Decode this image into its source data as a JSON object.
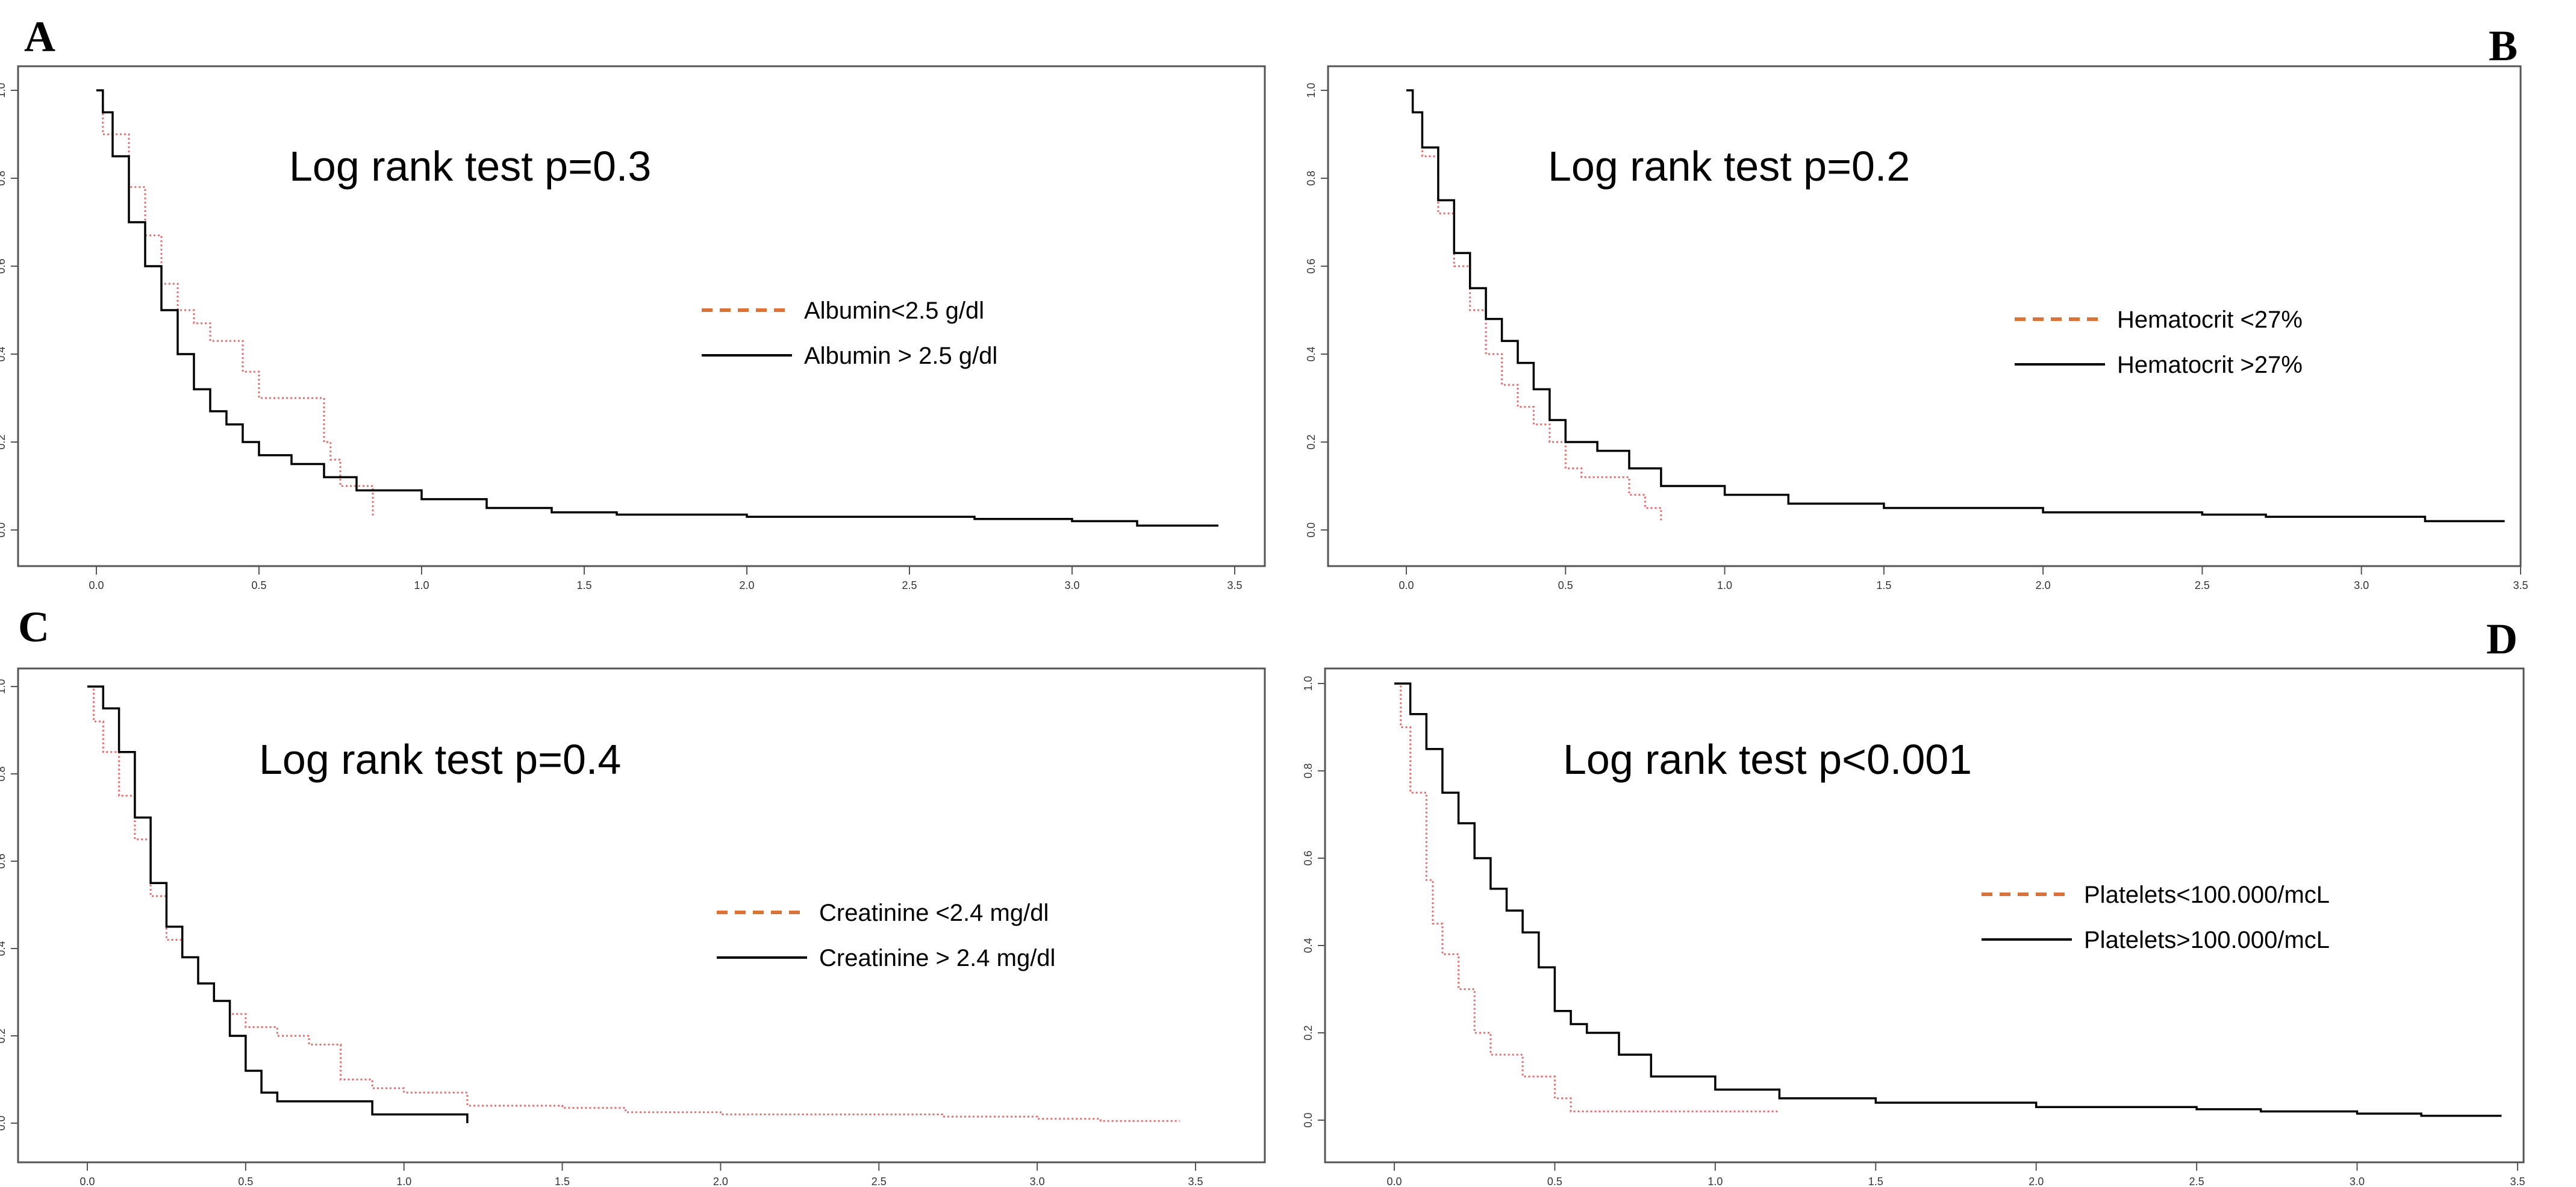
{
  "chart_data": [
    {
      "type": "line",
      "panel": "A",
      "annotation": "Log rank test p=0.3",
      "xlim": [
        0,
        3.5
      ],
      "ylim": [
        0,
        1
      ],
      "x_ticks": [
        "0.0",
        "0.5",
        "1.0",
        "1.5",
        "2.0",
        "2.5",
        "3.0",
        "3.5"
      ],
      "y_ticks": [
        "0.0",
        "0.2",
        "0.4",
        "0.6",
        "0.8",
        "1.0"
      ],
      "series": [
        {
          "name": "Albumin<2.5 g/dl",
          "style": "dotted",
          "color": "#e07070",
          "x": [
            0,
            0.02,
            0.1,
            0.15,
            0.2,
            0.25,
            0.3,
            0.35,
            0.45,
            0.5,
            0.6,
            0.7,
            0.72,
            0.75,
            0.85
          ],
          "y": [
            1.0,
            0.9,
            0.78,
            0.67,
            0.56,
            0.5,
            0.47,
            0.43,
            0.36,
            0.3,
            0.3,
            0.2,
            0.16,
            0.1,
            0.03
          ]
        },
        {
          "name": "Albumin > 2.5 g/dl",
          "style": "solid",
          "color": "#000000",
          "x": [
            0,
            0.02,
            0.05,
            0.1,
            0.15,
            0.2,
            0.25,
            0.3,
            0.35,
            0.4,
            0.45,
            0.5,
            0.6,
            0.7,
            0.8,
            1.0,
            1.2,
            1.4,
            1.6,
            2.0,
            2.7,
            3.0,
            3.2,
            3.45
          ],
          "y": [
            1.0,
            0.95,
            0.85,
            0.7,
            0.6,
            0.5,
            0.4,
            0.32,
            0.27,
            0.24,
            0.2,
            0.17,
            0.15,
            0.12,
            0.09,
            0.07,
            0.05,
            0.04,
            0.035,
            0.03,
            0.025,
            0.02,
            0.01,
            0.01
          ]
        }
      ]
    },
    {
      "type": "line",
      "panel": "B",
      "annotation": "Log rank test p=0.2",
      "xlim": [
        0,
        3.5
      ],
      "ylim": [
        0,
        1
      ],
      "x_ticks": [
        "0.0",
        "0.5",
        "1.0",
        "1.5",
        "2.0",
        "2.5",
        "3.0",
        "3.5"
      ],
      "y_ticks": [
        "0.0",
        "0.2",
        "0.4",
        "0.6",
        "0.8",
        "1.0"
      ],
      "series": [
        {
          "name": "Hematocrit <27%",
          "style": "dotted",
          "color": "#e07070",
          "x": [
            0,
            0.02,
            0.05,
            0.1,
            0.15,
            0.2,
            0.25,
            0.3,
            0.35,
            0.4,
            0.45,
            0.5,
            0.55,
            0.65,
            0.7,
            0.75,
            0.8
          ],
          "y": [
            1.0,
            0.95,
            0.85,
            0.72,
            0.6,
            0.5,
            0.4,
            0.33,
            0.28,
            0.24,
            0.2,
            0.14,
            0.12,
            0.12,
            0.08,
            0.05,
            0.02
          ]
        },
        {
          "name": "Hematocrit >27%",
          "style": "solid",
          "color": "#000000",
          "x": [
            0,
            0.02,
            0.05,
            0.1,
            0.15,
            0.2,
            0.25,
            0.3,
            0.35,
            0.4,
            0.45,
            0.5,
            0.6,
            0.7,
            0.8,
            1.0,
            1.2,
            1.5,
            2.0,
            2.5,
            2.7,
            3.0,
            3.2,
            3.45
          ],
          "y": [
            1.0,
            0.95,
            0.87,
            0.75,
            0.63,
            0.55,
            0.48,
            0.43,
            0.38,
            0.32,
            0.25,
            0.2,
            0.18,
            0.14,
            0.1,
            0.08,
            0.06,
            0.05,
            0.04,
            0.035,
            0.03,
            0.03,
            0.02,
            0.02
          ]
        }
      ]
    },
    {
      "type": "line",
      "panel": "C",
      "annotation": "Log rank test p=0.4",
      "xlim": [
        0,
        3.5
      ],
      "ylim": [
        0,
        1
      ],
      "x_ticks": [
        "0.0",
        "0.5",
        "1.0",
        "1.5",
        "2.0",
        "2.5",
        "3.0",
        "3.5"
      ],
      "y_ticks": [
        "0.0",
        "0.2",
        "0.4",
        "0.6",
        "0.8",
        "1.0"
      ],
      "series": [
        {
          "name": "Creatinine <2.4 mg/dl",
          "style": "dotted",
          "color": "#e07070",
          "x": [
            0,
            0.02,
            0.05,
            0.1,
            0.15,
            0.2,
            0.25,
            0.3,
            0.35,
            0.4,
            0.45,
            0.5,
            0.6,
            0.7,
            0.8,
            0.9,
            1.0,
            1.2,
            1.5,
            1.7,
            2.0,
            2.7,
            3.0,
            3.2,
            3.45
          ],
          "y": [
            1.0,
            0.92,
            0.85,
            0.75,
            0.65,
            0.52,
            0.42,
            0.38,
            0.32,
            0.28,
            0.25,
            0.22,
            0.2,
            0.18,
            0.1,
            0.08,
            0.07,
            0.04,
            0.035,
            0.025,
            0.02,
            0.015,
            0.01,
            0.005,
            0.005
          ]
        },
        {
          "name": "Creatinine > 2.4 mg/dl",
          "style": "solid",
          "color": "#000000",
          "x": [
            0,
            0.05,
            0.1,
            0.15,
            0.2,
            0.25,
            0.3,
            0.35,
            0.4,
            0.45,
            0.5,
            0.55,
            0.6,
            0.7,
            0.9,
            1.0,
            1.2
          ],
          "y": [
            1.0,
            0.95,
            0.85,
            0.7,
            0.55,
            0.45,
            0.38,
            0.32,
            0.28,
            0.2,
            0.12,
            0.07,
            0.05,
            0.05,
            0.02,
            0.02,
            0.0
          ]
        }
      ]
    },
    {
      "type": "line",
      "panel": "D",
      "annotation": "Log rank test p<0.001",
      "xlim": [
        0,
        3.5
      ],
      "ylim": [
        0,
        1
      ],
      "x_ticks": [
        "0.0",
        "0.5",
        "1.0",
        "1.5",
        "2.0",
        "2.5",
        "3.0",
        "3.5"
      ],
      "y_ticks": [
        "0.0",
        "0.2",
        "0.4",
        "0.6",
        "0.8",
        "1.0"
      ],
      "series": [
        {
          "name": "Platelets<100.000/mcL",
          "style": "dotted",
          "color": "#e07070",
          "x": [
            0,
            0.02,
            0.05,
            0.1,
            0.12,
            0.15,
            0.2,
            0.25,
            0.3,
            0.4,
            0.5,
            0.55,
            0.7,
            1.2
          ],
          "y": [
            1.0,
            0.9,
            0.75,
            0.55,
            0.45,
            0.38,
            0.3,
            0.2,
            0.15,
            0.1,
            0.05,
            0.02,
            0.02,
            0.02
          ]
        },
        {
          "name": "Platelets>100.000/mcL",
          "style": "solid",
          "color": "#000000",
          "x": [
            0,
            0.05,
            0.1,
            0.15,
            0.2,
            0.25,
            0.3,
            0.35,
            0.4,
            0.45,
            0.5,
            0.55,
            0.6,
            0.7,
            0.8,
            1.0,
            1.2,
            1.5,
            2.0,
            2.5,
            2.7,
            3.0,
            3.2,
            3.45
          ],
          "y": [
            1.0,
            0.93,
            0.85,
            0.75,
            0.68,
            0.6,
            0.53,
            0.48,
            0.43,
            0.35,
            0.25,
            0.22,
            0.2,
            0.15,
            0.1,
            0.07,
            0.05,
            0.04,
            0.03,
            0.025,
            0.02,
            0.015,
            0.01,
            0.01
          ]
        }
      ]
    }
  ]
}
